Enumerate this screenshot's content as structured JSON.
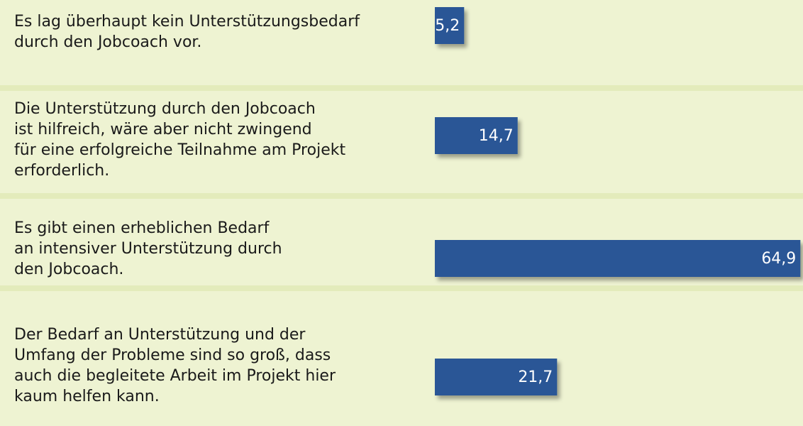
{
  "chart_data": {
    "type": "hbar",
    "categories": [
      [
        "Es lag überhaupt kein Unterstützungsbedarf",
        "durch den Jobcoach vor."
      ],
      [
        "Die Unterstützung durch den Jobcoach",
        "ist hilfreich, wäre aber nicht zwingend",
        "für eine erfolgreiche Teilnahme am Projekt",
        "erforderlich."
      ],
      [
        "Es gibt einen erheblichen Bedarf",
        "an intensiver Unterstützung durch",
        "den Jobcoach."
      ],
      [
        "Der Bedarf an Unterstützung und der",
        "Umfang der Probleme sind so groß, dass",
        "auch die begleitete Arbeit im Projekt hier",
        "kaum helfen kann."
      ]
    ],
    "values": [
      5.2,
      14.7,
      64.9,
      21.7
    ],
    "value_labels": [
      "5,2",
      "14,7",
      "64,9",
      "21,7"
    ],
    "color": "#2b5796"
  }
}
